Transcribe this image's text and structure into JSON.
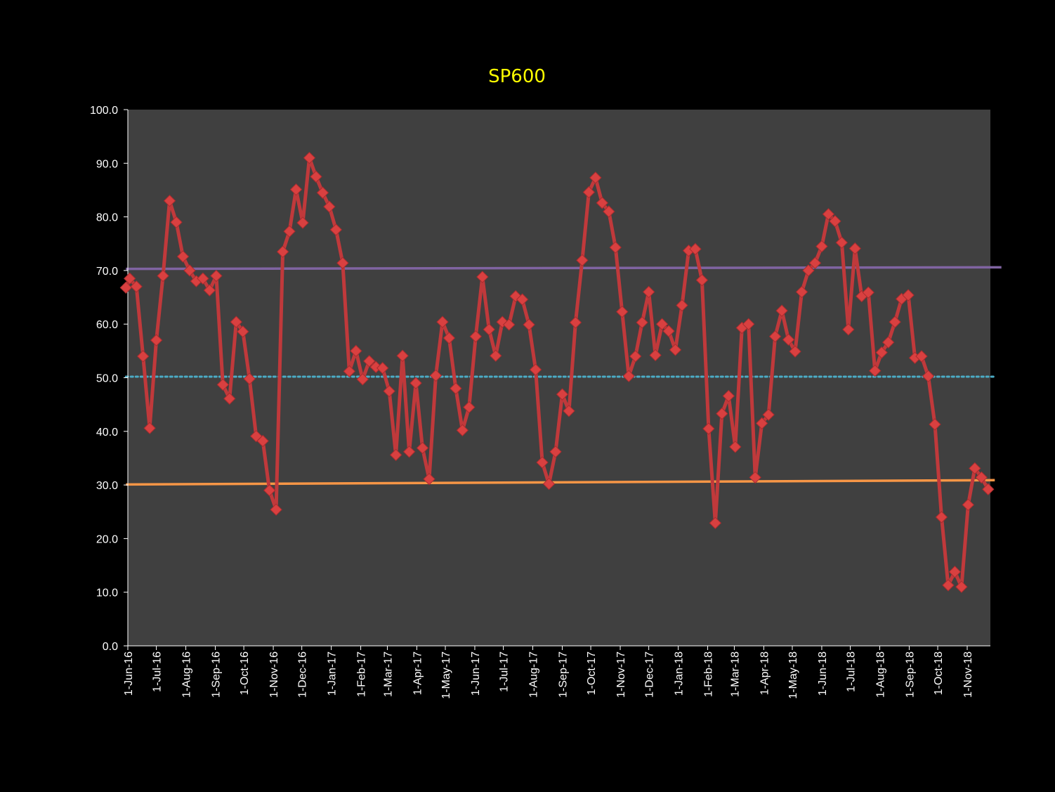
{
  "chart_data": {
    "type": "line",
    "title": "SP600",
    "xlabel": "",
    "ylabel": "",
    "ylim": [
      0,
      100
    ],
    "y_ticks": [
      "0.0",
      "10.0",
      "20.0",
      "30.0",
      "40.0",
      "50.0",
      "60.0",
      "70.0",
      "80.0",
      "90.0",
      "100.0"
    ],
    "x_tick_labels": [
      "1-Jun-16",
      "1-Jul-16",
      "1-Aug-16",
      "1-Sep-16",
      "1-Oct-16",
      "1-Nov-16",
      "1-Dec-16",
      "1-Jan-17",
      "1-Feb-17",
      "1-Mar-17",
      "1-Apr-17",
      "1-May-17",
      "1-Jun-17",
      "1-Jul-17",
      "1-Aug-17",
      "1-Sep-17",
      "1-Oct-17",
      "1-Nov-17",
      "1-Dec-17",
      "1-Jan-18",
      "1-Feb-18",
      "1-Mar-18",
      "1-Apr-18",
      "1-May-18",
      "1-Jun-18",
      "1-Jul-18",
      "1-Aug-18",
      "1-Sep-18",
      "1-Oct-18",
      "1-Nov-18"
    ],
    "x_range": [
      "2016-06-01",
      "2018-12-07"
    ],
    "grid": false,
    "colors": {
      "background": "#000000",
      "plot_area": "#404040",
      "series": "#c0393b",
      "marker": "#d94040",
      "title": "#ffff00",
      "upper_line": "#8064a2",
      "mid_line": "#4bacc6",
      "lower_line": "#f79646",
      "tick_text": "#ffffff",
      "axis": "#ffffff"
    },
    "series": [
      {
        "marker": "diamond",
        "points": [
          [
            "2016-05-30",
            66.8
          ],
          [
            "2016-06-03",
            68.5
          ],
          [
            "2016-06-10",
            67.0
          ],
          [
            "2016-06-17",
            54.0
          ],
          [
            "2016-06-24",
            40.6
          ],
          [
            "2016-07-01",
            57.0
          ],
          [
            "2016-07-08",
            69.0
          ],
          [
            "2016-07-15",
            83.0
          ],
          [
            "2016-07-22",
            79.0
          ],
          [
            "2016-07-29",
            72.6
          ],
          [
            "2016-08-05",
            70.0
          ],
          [
            "2016-08-12",
            68.0
          ],
          [
            "2016-08-19",
            68.5
          ],
          [
            "2016-08-26",
            66.3
          ],
          [
            "2016-09-02",
            69.0
          ],
          [
            "2016-09-09",
            48.7
          ],
          [
            "2016-09-16",
            46.1
          ],
          [
            "2016-09-23",
            60.4
          ],
          [
            "2016-09-30",
            58.6
          ],
          [
            "2016-10-07",
            49.8
          ],
          [
            "2016-10-14",
            39.1
          ],
          [
            "2016-10-21",
            38.2
          ],
          [
            "2016-10-28",
            29.0
          ],
          [
            "2016-11-04",
            25.4
          ],
          [
            "2016-11-11",
            73.5
          ],
          [
            "2016-11-18",
            77.3
          ],
          [
            "2016-11-25",
            85.1
          ],
          [
            "2016-12-02",
            78.9
          ],
          [
            "2016-12-09",
            91.0
          ],
          [
            "2016-12-16",
            87.5
          ],
          [
            "2016-12-23",
            84.5
          ],
          [
            "2016-12-30",
            81.9
          ],
          [
            "2017-01-06",
            77.6
          ],
          [
            "2017-01-13",
            71.4
          ],
          [
            "2017-01-20",
            51.2
          ],
          [
            "2017-01-27",
            55.0
          ],
          [
            "2017-02-03",
            49.7
          ],
          [
            "2017-02-10",
            53.1
          ],
          [
            "2017-02-17",
            52.0
          ],
          [
            "2017-02-24",
            51.8
          ],
          [
            "2017-03-03",
            47.5
          ],
          [
            "2017-03-10",
            35.6
          ],
          [
            "2017-03-17",
            54.1
          ],
          [
            "2017-03-24",
            36.2
          ],
          [
            "2017-03-31",
            49.0
          ],
          [
            "2017-04-07",
            36.9
          ],
          [
            "2017-04-14",
            31.1
          ],
          [
            "2017-04-21",
            50.4
          ],
          [
            "2017-04-28",
            60.4
          ],
          [
            "2017-05-05",
            57.4
          ],
          [
            "2017-05-12",
            48.0
          ],
          [
            "2017-05-19",
            40.2
          ],
          [
            "2017-05-26",
            44.5
          ],
          [
            "2017-06-02",
            57.7
          ],
          [
            "2017-06-09",
            68.8
          ],
          [
            "2017-06-16",
            59.0
          ],
          [
            "2017-06-23",
            54.1
          ],
          [
            "2017-06-30",
            60.4
          ],
          [
            "2017-07-07",
            59.9
          ],
          [
            "2017-07-14",
            65.2
          ],
          [
            "2017-07-21",
            64.6
          ],
          [
            "2017-07-28",
            59.9
          ],
          [
            "2017-08-04",
            51.5
          ],
          [
            "2017-08-11",
            34.2
          ],
          [
            "2017-08-18",
            30.2
          ],
          [
            "2017-08-25",
            36.2
          ],
          [
            "2017-09-01",
            46.9
          ],
          [
            "2017-09-08",
            43.8
          ],
          [
            "2017-09-15",
            60.3
          ],
          [
            "2017-09-22",
            71.9
          ],
          [
            "2017-09-29",
            84.6
          ],
          [
            "2017-10-06",
            87.3
          ],
          [
            "2017-10-13",
            82.6
          ],
          [
            "2017-10-20",
            81.0
          ],
          [
            "2017-10-27",
            74.3
          ],
          [
            "2017-11-03",
            62.3
          ],
          [
            "2017-11-10",
            50.3
          ],
          [
            "2017-11-17",
            54.0
          ],
          [
            "2017-11-24",
            60.3
          ],
          [
            "2017-12-01",
            66.0
          ],
          [
            "2017-12-08",
            54.2
          ],
          [
            "2017-12-15",
            60.0
          ],
          [
            "2017-12-22",
            58.7
          ],
          [
            "2017-12-29",
            55.2
          ],
          [
            "2018-01-05",
            63.5
          ],
          [
            "2018-01-12",
            73.7
          ],
          [
            "2018-01-19",
            74.0
          ],
          [
            "2018-01-26",
            68.2
          ],
          [
            "2018-02-02",
            40.5
          ],
          [
            "2018-02-09",
            22.9
          ],
          [
            "2018-02-16",
            43.3
          ],
          [
            "2018-02-23",
            46.6
          ],
          [
            "2018-03-02",
            37.1
          ],
          [
            "2018-03-09",
            59.3
          ],
          [
            "2018-03-16",
            60.0
          ],
          [
            "2018-03-23",
            31.4
          ],
          [
            "2018-03-30",
            41.5
          ],
          [
            "2018-04-06",
            43.1
          ],
          [
            "2018-04-13",
            57.7
          ],
          [
            "2018-04-20",
            62.5
          ],
          [
            "2018-04-27",
            57.1
          ],
          [
            "2018-05-04",
            54.9
          ],
          [
            "2018-05-11",
            66.0
          ],
          [
            "2018-05-18",
            70.0
          ],
          [
            "2018-05-25",
            71.4
          ],
          [
            "2018-06-01",
            74.5
          ],
          [
            "2018-06-08",
            80.5
          ],
          [
            "2018-06-15",
            79.2
          ],
          [
            "2018-06-22",
            75.2
          ],
          [
            "2018-06-29",
            59.0
          ],
          [
            "2018-07-06",
            74.1
          ],
          [
            "2018-07-13",
            65.2
          ],
          [
            "2018-07-20",
            65.9
          ],
          [
            "2018-07-27",
            51.3
          ],
          [
            "2018-08-03",
            54.7
          ],
          [
            "2018-08-10",
            56.6
          ],
          [
            "2018-08-17",
            60.4
          ],
          [
            "2018-08-24",
            64.7
          ],
          [
            "2018-08-31",
            65.4
          ],
          [
            "2018-09-07",
            53.7
          ],
          [
            "2018-09-14",
            54.0
          ],
          [
            "2018-09-21",
            50.3
          ],
          [
            "2018-09-28",
            41.3
          ],
          [
            "2018-10-05",
            24.0
          ],
          [
            "2018-10-12",
            11.3
          ],
          [
            "2018-10-19",
            13.8
          ],
          [
            "2018-10-26",
            11.0
          ],
          [
            "2018-11-02",
            26.3
          ],
          [
            "2018-11-09",
            33.1
          ],
          [
            "2018-11-16",
            31.4
          ],
          [
            "2018-11-23",
            29.2
          ]
        ]
      }
    ],
    "reference_lines": [
      {
        "style": "solid",
        "color_key": "upper_line",
        "y_start": 70.3,
        "y_end": 70.6,
        "x_start": "2016-05-30",
        "x_end": "2018-12-07"
      },
      {
        "style": "dotted",
        "color_key": "mid_line",
        "y_start": 50.2,
        "y_end": 50.2,
        "x_start": "2016-05-30",
        "x_end": "2018-11-30"
      },
      {
        "style": "solid",
        "color_key": "lower_line",
        "y_start": 30.1,
        "y_end": 30.9,
        "x_start": "2016-05-30",
        "x_end": "2018-11-30"
      }
    ]
  }
}
